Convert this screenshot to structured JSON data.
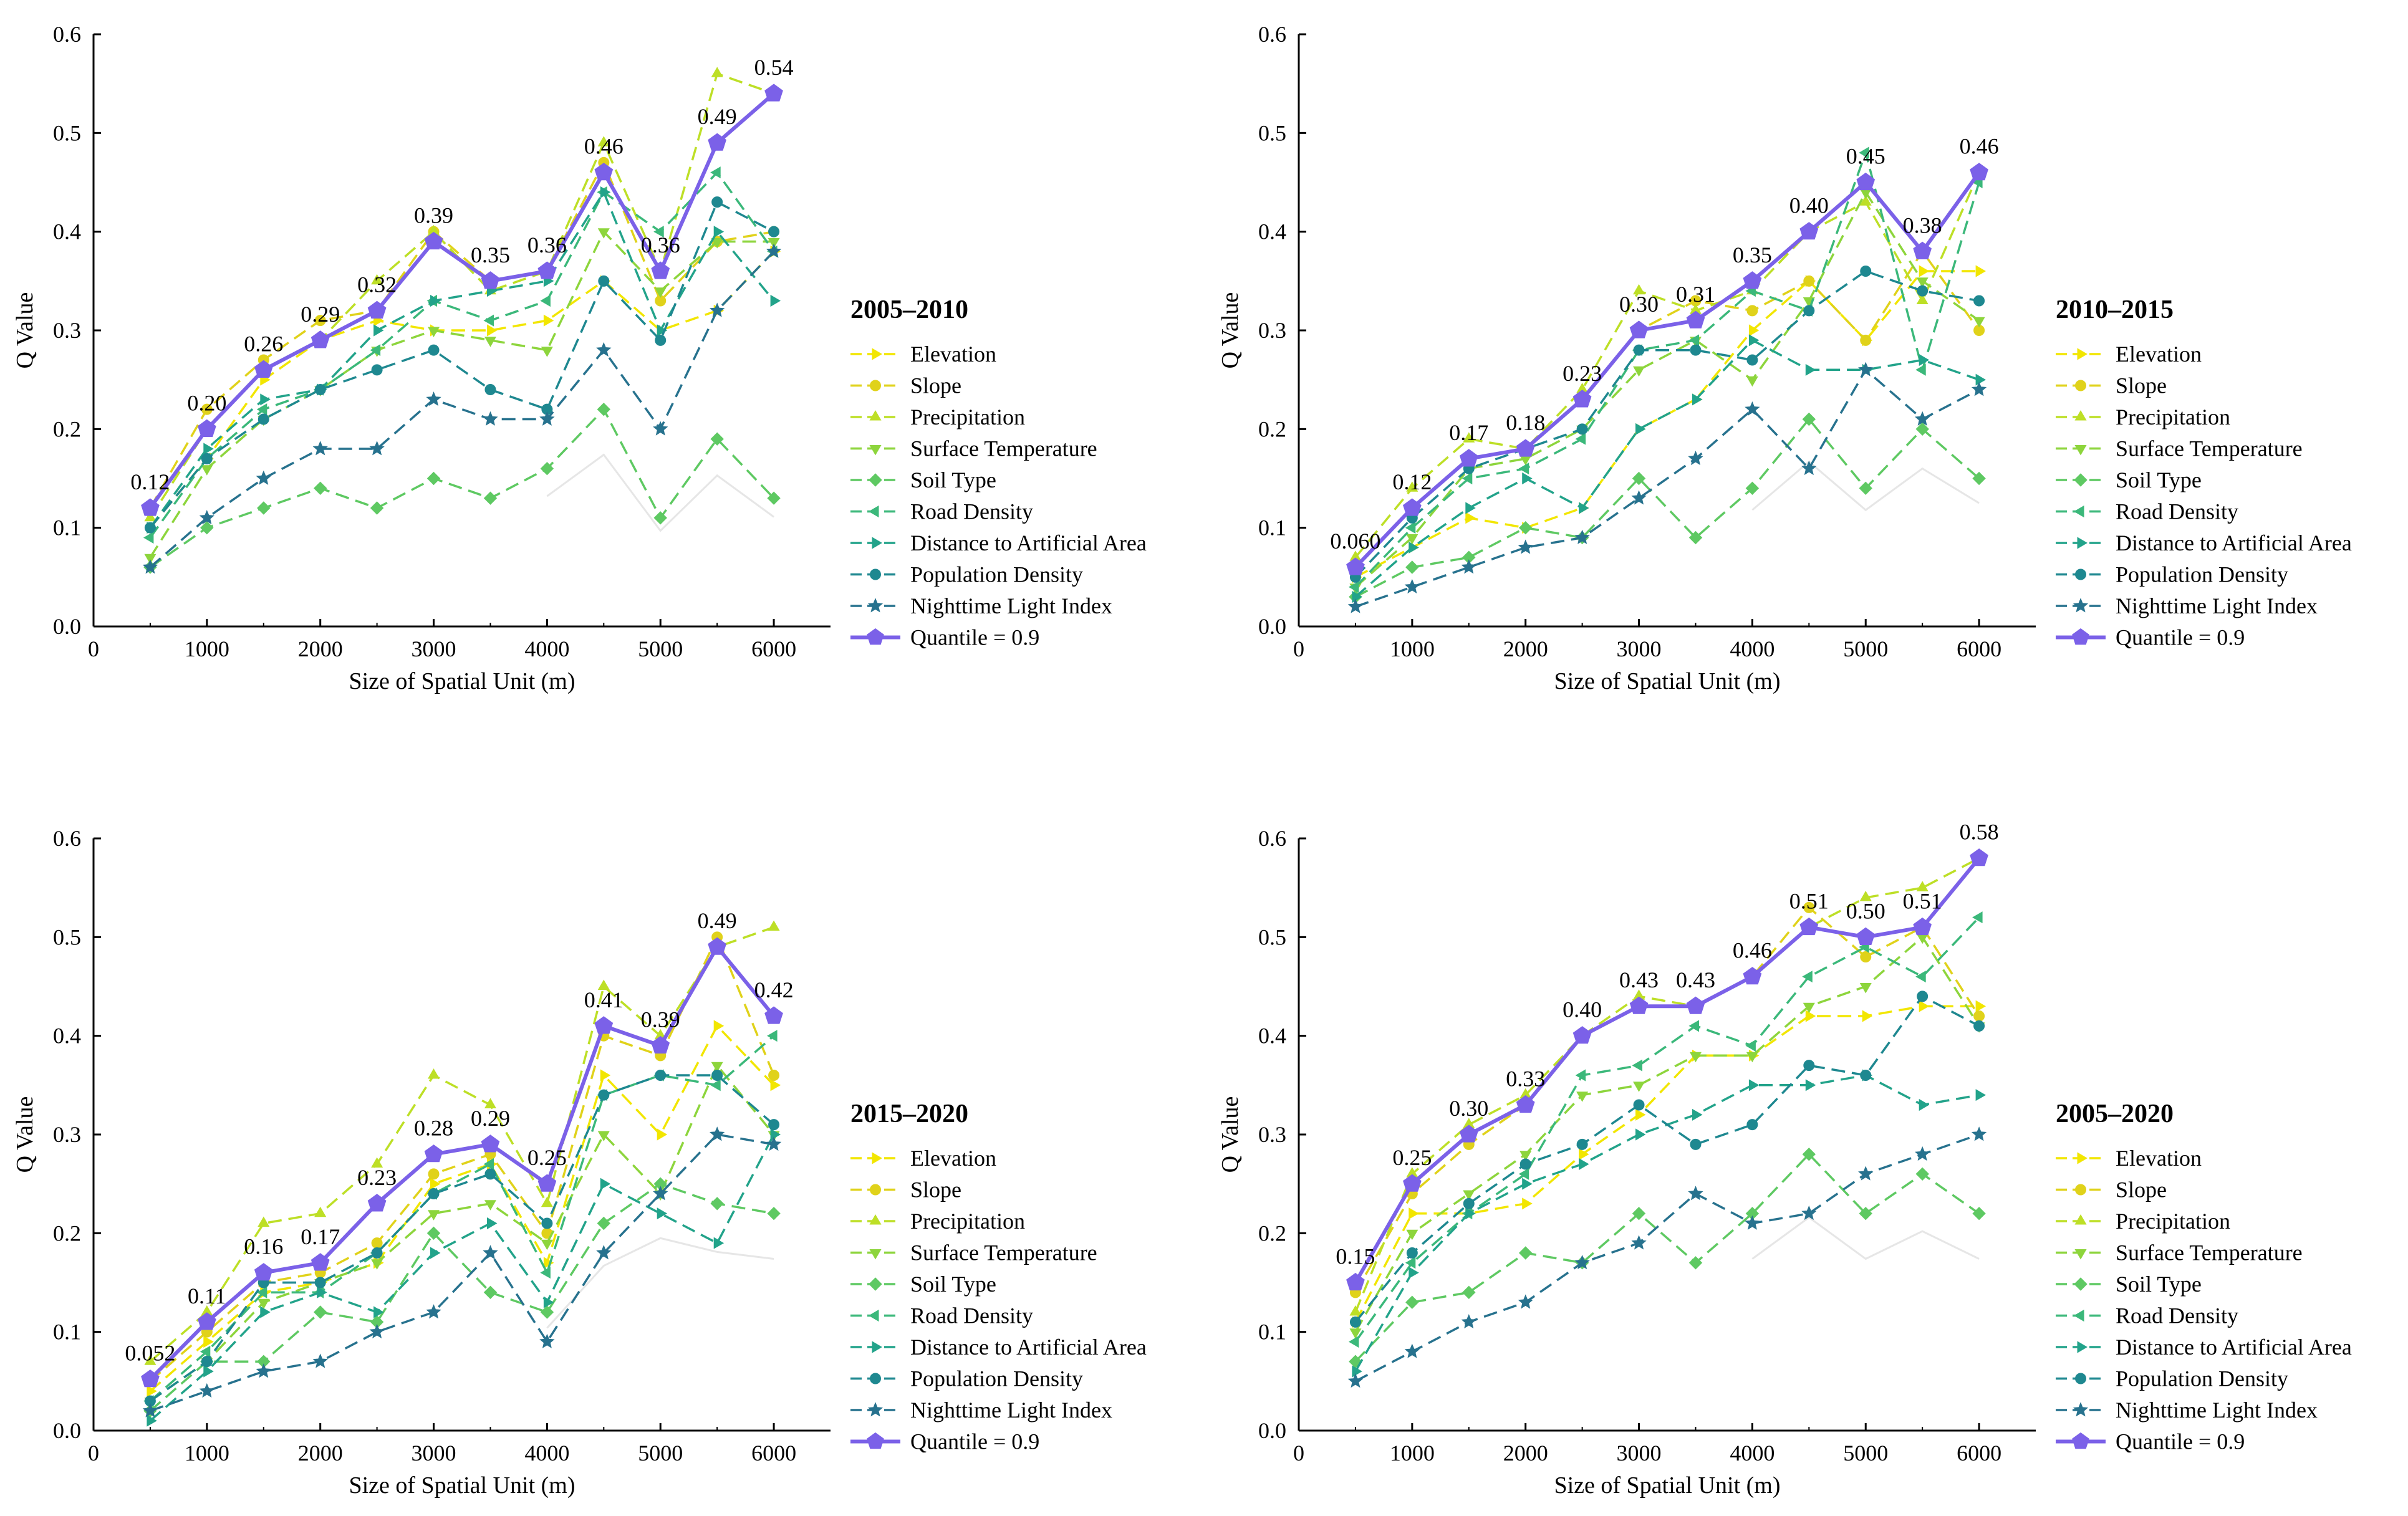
{
  "colors": {
    "Elevation": "#f2e600",
    "Slope": "#e0d21a",
    "Precipitation": "#bddf26",
    "Surface Temperature": "#8dd53c",
    "Soil Type": "#5ec962",
    "Road Density": "#3bb87a",
    "Distance to Artificial Area": "#22a38a",
    "Population Density": "#1e8890",
    "Nighttime Light Index": "#27728e",
    "Quantile = 0.9": "#7b61e8",
    "axis": "#000000",
    "faint": "#e6e6e6"
  },
  "chart_data": [
    {
      "type": "line",
      "title": "2005–2010",
      "xlabel": "Size of Spatial Unit (m)",
      "ylabel": "Q Value",
      "xlim": [
        0,
        6500
      ],
      "ylim": [
        0,
        0.6
      ],
      "x": [
        500,
        1000,
        1500,
        2000,
        2500,
        3000,
        3500,
        4000,
        4500,
        5000,
        5500,
        6000
      ],
      "xticks": [
        "0",
        "1000",
        "2000",
        "3000",
        "4000",
        "5000",
        "6000"
      ],
      "yticks": [
        "0.0",
        "0.1",
        "0.2",
        "0.3",
        "0.4",
        "0.5",
        "0.6"
      ],
      "series": [
        {
          "name": "Elevation",
          "values": [
            0.1,
            0.17,
            0.25,
            0.29,
            0.31,
            0.3,
            0.3,
            0.31,
            0.35,
            0.3,
            0.32,
            0.38
          ]
        },
        {
          "name": "Slope",
          "values": [
            0.12,
            0.22,
            0.27,
            0.31,
            0.32,
            0.4,
            0.35,
            0.36,
            0.47,
            0.33,
            0.39,
            0.4
          ]
        },
        {
          "name": "Precipitation",
          "values": [
            0.11,
            0.2,
            0.26,
            0.29,
            0.35,
            0.4,
            0.34,
            0.36,
            0.49,
            0.36,
            0.56,
            0.54
          ]
        },
        {
          "name": "Surface Temperature",
          "values": [
            0.07,
            0.16,
            0.21,
            0.24,
            0.28,
            0.3,
            0.29,
            0.28,
            0.4,
            0.34,
            0.39,
            0.39
          ]
        },
        {
          "name": "Soil Type",
          "values": [
            0.06,
            0.1,
            0.12,
            0.14,
            0.12,
            0.15,
            0.13,
            0.16,
            0.22,
            0.11,
            0.19,
            0.13
          ]
        },
        {
          "name": "Road Density",
          "values": [
            0.09,
            0.17,
            0.22,
            0.24,
            0.28,
            0.33,
            0.31,
            0.33,
            0.44,
            0.4,
            0.46,
            0.38
          ]
        },
        {
          "name": "Distance to Artificial Area",
          "values": [
            0.1,
            0.18,
            0.23,
            0.24,
            0.3,
            0.33,
            0.34,
            0.35,
            0.44,
            0.3,
            0.4,
            0.33
          ]
        },
        {
          "name": "Population Density",
          "values": [
            0.1,
            0.17,
            0.21,
            0.24,
            0.26,
            0.28,
            0.24,
            0.22,
            0.35,
            0.29,
            0.43,
            0.4
          ]
        },
        {
          "name": "Nighttime Light Index",
          "values": [
            0.06,
            0.11,
            0.15,
            0.18,
            0.18,
            0.23,
            0.21,
            0.21,
            0.28,
            0.2,
            0.32,
            0.38
          ]
        },
        {
          "name": "Quantile = 0.9",
          "values": [
            0.12,
            0.2,
            0.26,
            0.29,
            0.32,
            0.39,
            0.35,
            0.36,
            0.46,
            0.36,
            0.49,
            0.54
          ]
        }
      ],
      "labels": [
        "0.12",
        "0.20",
        "0.26",
        "0.29",
        "0.32",
        "0.39",
        "0.35",
        "0.36",
        "0.46",
        "0.36",
        "0.49",
        "0.54"
      ],
      "legend": [
        "Elevation",
        "Slope",
        "Precipitation",
        "Surface Temperature",
        "Soil Type",
        "Road Density",
        "Distance to Artificial Area",
        "Population Density",
        "Nighttime Light Index",
        "Quantile = 0.9"
      ]
    },
    {
      "type": "line",
      "title": "2010–2015",
      "xlabel": "Size of Spatial Unit (m)",
      "ylabel": "Q Value",
      "xlim": [
        0,
        6500
      ],
      "ylim": [
        0,
        0.6
      ],
      "x": [
        500,
        1000,
        1500,
        2000,
        2500,
        3000,
        3500,
        4000,
        4500,
        5000,
        5500,
        6000
      ],
      "xticks": [
        "0",
        "1000",
        "2000",
        "3000",
        "4000",
        "5000",
        "6000"
      ],
      "yticks": [
        "0.0",
        "0.1",
        "0.2",
        "0.3",
        "0.4",
        "0.5",
        "0.6"
      ],
      "series": [
        {
          "name": "Elevation",
          "values": [
            0.05,
            0.08,
            0.11,
            0.1,
            0.12,
            0.2,
            0.23,
            0.3,
            0.35,
            0.29,
            0.36,
            0.36
          ]
        },
        {
          "name": "Slope",
          "values": [
            0.06,
            0.12,
            0.17,
            0.18,
            0.23,
            0.3,
            0.33,
            0.32,
            0.35,
            0.29,
            0.38,
            0.3
          ]
        },
        {
          "name": "Precipitation",
          "values": [
            0.07,
            0.14,
            0.19,
            0.18,
            0.24,
            0.34,
            0.32,
            0.34,
            0.4,
            0.43,
            0.33,
            0.46
          ]
        },
        {
          "name": "Surface Temperature",
          "values": [
            0.04,
            0.09,
            0.16,
            0.17,
            0.2,
            0.26,
            0.29,
            0.25,
            0.33,
            0.44,
            0.35,
            0.31
          ]
        },
        {
          "name": "Soil Type",
          "values": [
            0.03,
            0.06,
            0.07,
            0.1,
            0.09,
            0.15,
            0.09,
            0.14,
            0.21,
            0.14,
            0.2,
            0.15
          ]
        },
        {
          "name": "Road Density",
          "values": [
            0.04,
            0.1,
            0.15,
            0.16,
            0.19,
            0.28,
            0.29,
            0.34,
            0.32,
            0.48,
            0.26,
            0.45
          ]
        },
        {
          "name": "Distance to Artificial Area",
          "values": [
            0.03,
            0.08,
            0.12,
            0.15,
            0.12,
            0.2,
            0.23,
            0.29,
            0.26,
            0.26,
            0.27,
            0.25
          ]
        },
        {
          "name": "Population Density",
          "values": [
            0.05,
            0.11,
            0.16,
            0.18,
            0.2,
            0.28,
            0.28,
            0.27,
            0.32,
            0.36,
            0.34,
            0.33
          ]
        },
        {
          "name": "Nighttime Light Index",
          "values": [
            0.02,
            0.04,
            0.06,
            0.08,
            0.09,
            0.13,
            0.17,
            0.22,
            0.16,
            0.26,
            0.21,
            0.24
          ]
        },
        {
          "name": "Quantile = 0.9",
          "values": [
            0.06,
            0.12,
            0.17,
            0.18,
            0.23,
            0.3,
            0.31,
            0.35,
            0.4,
            0.45,
            0.38,
            0.46
          ]
        }
      ],
      "labels": [
        "0.060",
        "0.12",
        "0.17",
        "0.18",
        "0.23",
        "0.30",
        "0.31",
        "0.35",
        "0.40",
        "0.45",
        "0.38",
        "0.46"
      ],
      "legend": [
        "Elevation",
        "Slope",
        "Precipitation",
        "Surface Temperature",
        "Soil Type",
        "Road Density",
        "Distance to Artificial Area",
        "Population Density",
        "Nighttime Light Index",
        "Quantile = 0.9"
      ]
    },
    {
      "type": "line",
      "title": "2015–2020",
      "xlabel": "Size of Spatial Unit (m)",
      "ylabel": "Q Value",
      "xlim": [
        0,
        6500
      ],
      "ylim": [
        0,
        0.6
      ],
      "x": [
        500,
        1000,
        1500,
        2000,
        2500,
        3000,
        3500,
        4000,
        4500,
        5000,
        5500,
        6000
      ],
      "xticks": [
        "0",
        "1000",
        "2000",
        "3000",
        "4000",
        "5000",
        "6000"
      ],
      "yticks": [
        "0.0",
        "0.1",
        "0.2",
        "0.3",
        "0.4",
        "0.5",
        "0.6"
      ],
      "series": [
        {
          "name": "Elevation",
          "values": [
            0.04,
            0.09,
            0.14,
            0.15,
            0.17,
            0.25,
            0.27,
            0.17,
            0.36,
            0.3,
            0.41,
            0.35
          ]
        },
        {
          "name": "Slope",
          "values": [
            0.05,
            0.1,
            0.15,
            0.16,
            0.19,
            0.26,
            0.28,
            0.2,
            0.4,
            0.38,
            0.5,
            0.36
          ]
        },
        {
          "name": "Precipitation",
          "values": [
            0.07,
            0.12,
            0.21,
            0.22,
            0.27,
            0.36,
            0.33,
            0.23,
            0.45,
            0.4,
            0.49,
            0.51
          ]
        },
        {
          "name": "Surface Temperature",
          "values": [
            0.03,
            0.07,
            0.13,
            0.15,
            0.17,
            0.22,
            0.23,
            0.19,
            0.3,
            0.24,
            0.37,
            0.3
          ]
        },
        {
          "name": "Soil Type",
          "values": [
            0.02,
            0.07,
            0.07,
            0.12,
            0.11,
            0.2,
            0.14,
            0.12,
            0.21,
            0.25,
            0.23,
            0.22
          ]
        },
        {
          "name": "Road Density",
          "values": [
            0.03,
            0.08,
            0.14,
            0.14,
            0.18,
            0.24,
            0.27,
            0.16,
            0.34,
            0.36,
            0.35,
            0.4
          ]
        },
        {
          "name": "Distance to Artificial Area",
          "values": [
            0.01,
            0.06,
            0.12,
            0.14,
            0.12,
            0.18,
            0.21,
            0.13,
            0.25,
            0.22,
            0.19,
            0.3
          ]
        },
        {
          "name": "Population Density",
          "values": [
            0.03,
            0.07,
            0.15,
            0.15,
            0.18,
            0.24,
            0.26,
            0.21,
            0.34,
            0.36,
            0.36,
            0.31
          ]
        },
        {
          "name": "Nighttime Light Index",
          "values": [
            0.02,
            0.04,
            0.06,
            0.07,
            0.1,
            0.12,
            0.18,
            0.09,
            0.18,
            0.24,
            0.3,
            0.29
          ]
        },
        {
          "name": "Quantile = 0.9",
          "values": [
            0.052,
            0.11,
            0.16,
            0.17,
            0.23,
            0.28,
            0.29,
            0.25,
            0.41,
            0.39,
            0.49,
            0.42
          ]
        }
      ],
      "labels": [
        "0.052",
        "0.11",
        "0.16",
        "0.17",
        "0.23",
        "0.28",
        "0.29",
        "0.25",
        "0.41",
        "0.39",
        "0.49",
        "0.42"
      ],
      "legend": [
        "Elevation",
        "Slope",
        "Precipitation",
        "Surface Temperature",
        "Soil Type",
        "Road Density",
        "Distance to Artificial Area",
        "Population Density",
        "Nighttime Light Index",
        "Quantile = 0.9"
      ]
    },
    {
      "type": "line",
      "title": "2005–2020",
      "xlabel": "Size of Spatial Unit (m)",
      "ylabel": "Q Value",
      "xlim": [
        0,
        6500
      ],
      "ylim": [
        0,
        0.6
      ],
      "x": [
        500,
        1000,
        1500,
        2000,
        2500,
        3000,
        3500,
        4000,
        4500,
        5000,
        5500,
        6000
      ],
      "xticks": [
        "0",
        "1000",
        "2000",
        "3000",
        "4000",
        "5000",
        "6000"
      ],
      "yticks": [
        "0.0",
        "0.1",
        "0.2",
        "0.3",
        "0.4",
        "0.5",
        "0.6"
      ],
      "series": [
        {
          "name": "Elevation",
          "values": [
            0.11,
            0.22,
            0.22,
            0.23,
            0.28,
            0.32,
            0.38,
            0.38,
            0.42,
            0.42,
            0.43,
            0.43
          ]
        },
        {
          "name": "Slope",
          "values": [
            0.14,
            0.24,
            0.29,
            0.33,
            0.4,
            0.43,
            0.43,
            0.46,
            0.53,
            0.48,
            0.51,
            0.42
          ]
        },
        {
          "name": "Precipitation",
          "values": [
            0.12,
            0.26,
            0.31,
            0.34,
            0.4,
            0.44,
            0.43,
            0.46,
            0.51,
            0.54,
            0.55,
            0.58
          ]
        },
        {
          "name": "Surface Temperature",
          "values": [
            0.1,
            0.2,
            0.24,
            0.28,
            0.34,
            0.35,
            0.38,
            0.38,
            0.43,
            0.45,
            0.5,
            0.41
          ]
        },
        {
          "name": "Soil Type",
          "values": [
            0.07,
            0.13,
            0.14,
            0.18,
            0.17,
            0.22,
            0.17,
            0.22,
            0.28,
            0.22,
            0.26,
            0.22
          ]
        },
        {
          "name": "Road Density",
          "values": [
            0.09,
            0.17,
            0.22,
            0.26,
            0.36,
            0.37,
            0.41,
            0.39,
            0.46,
            0.49,
            0.46,
            0.52
          ]
        },
        {
          "name": "Distance to Artificial Area",
          "values": [
            0.06,
            0.16,
            0.22,
            0.25,
            0.27,
            0.3,
            0.32,
            0.35,
            0.35,
            0.36,
            0.33,
            0.34
          ]
        },
        {
          "name": "Population Density",
          "values": [
            0.11,
            0.18,
            0.23,
            0.27,
            0.29,
            0.33,
            0.29,
            0.31,
            0.37,
            0.36,
            0.44,
            0.41
          ]
        },
        {
          "name": "Nighttime Light Index",
          "values": [
            0.05,
            0.08,
            0.11,
            0.13,
            0.17,
            0.19,
            0.24,
            0.21,
            0.22,
            0.26,
            0.28,
            0.3
          ]
        },
        {
          "name": "Quantile = 0.9",
          "values": [
            0.15,
            0.25,
            0.3,
            0.33,
            0.4,
            0.43,
            0.43,
            0.46,
            0.51,
            0.5,
            0.51,
            0.58
          ]
        }
      ],
      "labels": [
        "0.15",
        "0.25",
        "0.30",
        "0.33",
        "0.40",
        "0.43",
        "0.43",
        "0.46",
        "0.51",
        "0.50",
        "0.51",
        "0.58"
      ],
      "legend": [
        "Elevation",
        "Slope",
        "Precipitation",
        "Surface Temperature",
        "Soil Type",
        "Road Density",
        "Distance to Artificial Area",
        "Population Density",
        "Nighttime Light Index",
        "Quantile = 0.9"
      ]
    }
  ]
}
